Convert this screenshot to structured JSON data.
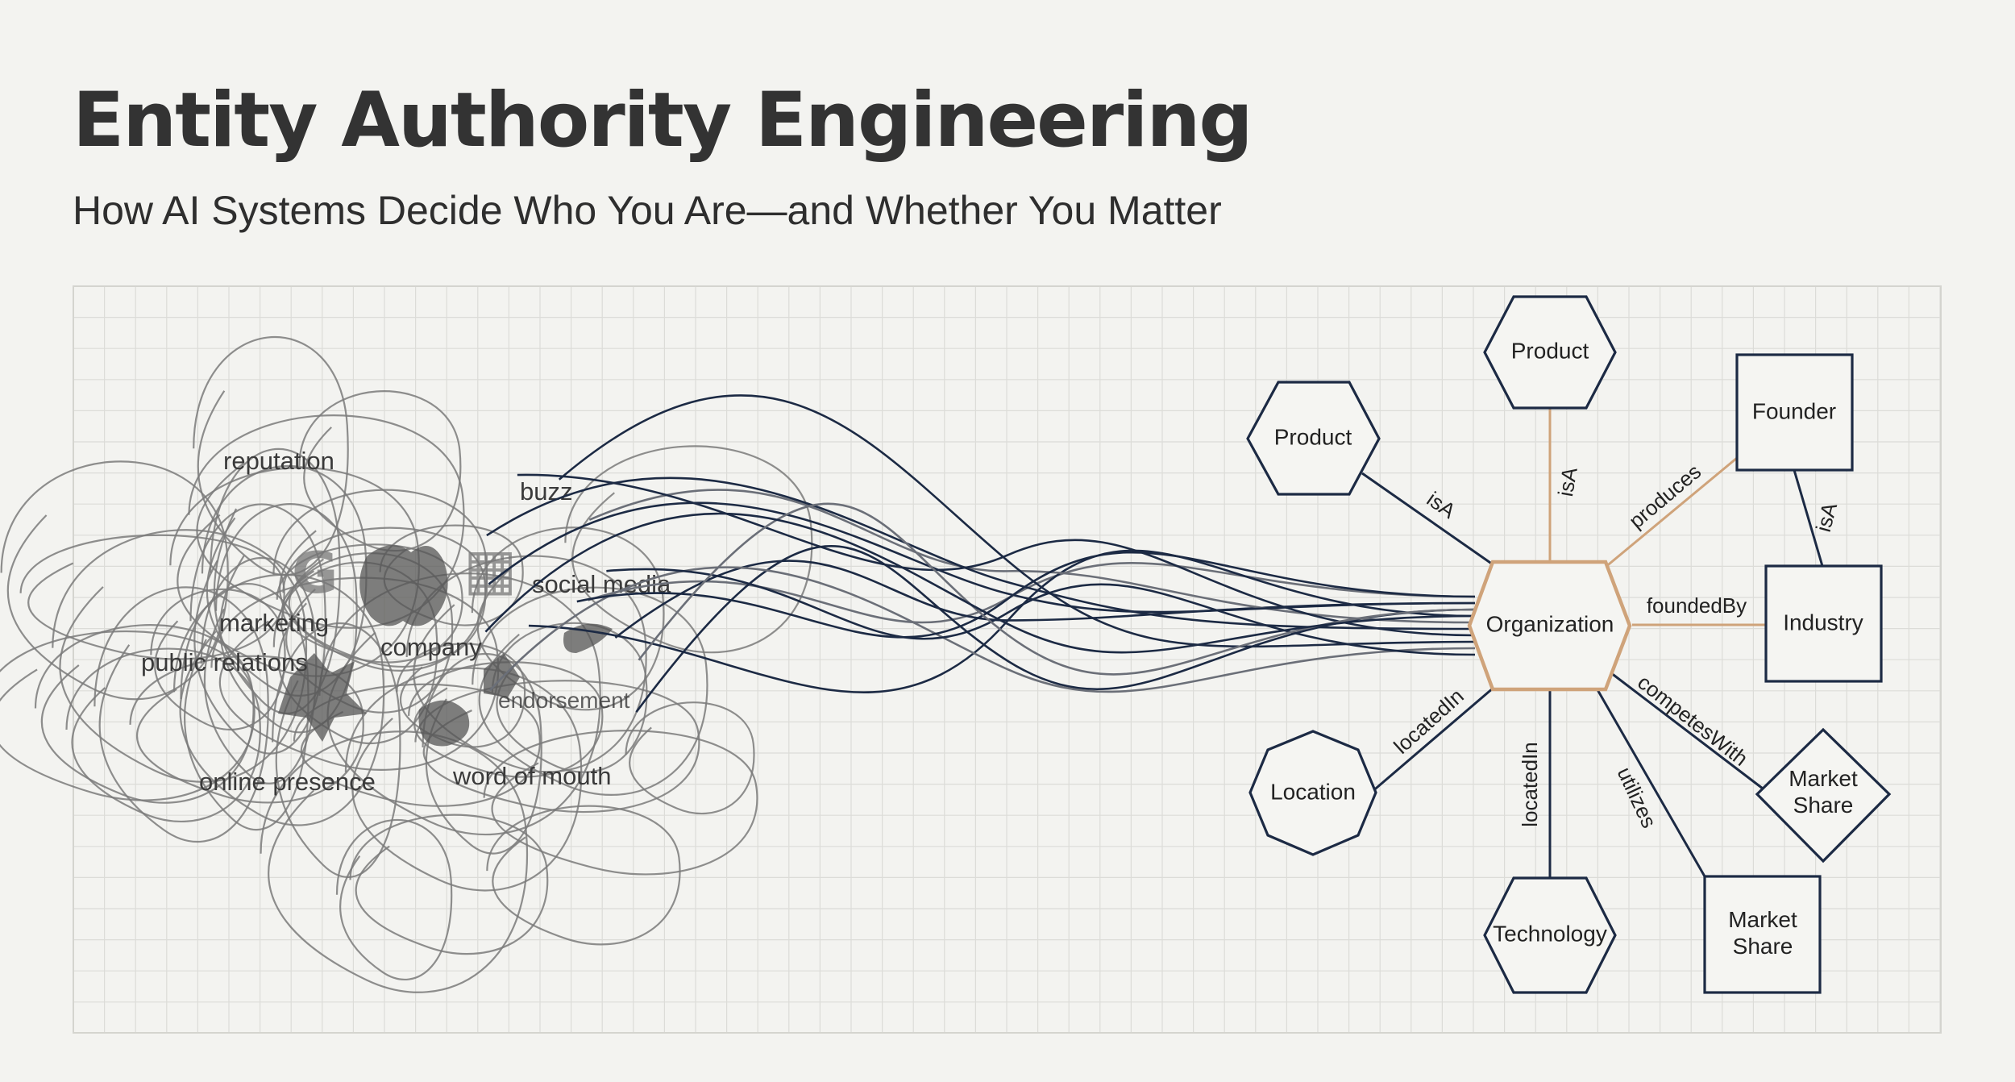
{
  "title": "Entity Authority Engineering",
  "subtitle": "How AI Systems Decide Who You Are—and Whether You Matter",
  "chaos_words": {
    "reputation": "reputation",
    "buzz": "buzz",
    "social_media": "social media",
    "marketing": "marketing",
    "company": "company",
    "public_relations": "public relations",
    "endorsement": "endorsement",
    "online_presence": "online presence",
    "word_of_mouth": "word of mouth"
  },
  "nodes": {
    "organization": "Organization",
    "product_top": "Product",
    "product_left": "Product",
    "founder": "Founder",
    "industry": "Industry",
    "location": "Location",
    "technology": "Technology",
    "market_share_diamond": "Market Share",
    "market_share_square": "Market Share"
  },
  "edges": {
    "isA_product_left": "isA",
    "isA_product_top": "isA",
    "produces": "produces",
    "isA_founder_industry": "isA",
    "foundedBy": "foundedBy",
    "competesWith": "competesWith",
    "locatedIn_location": "locatedIn",
    "locatedIn_technology": "locatedIn",
    "utilizes": "utilizes"
  },
  "colors": {
    "background": "#f3f3f0",
    "navy": "#1c2a44",
    "hub_accent": "#cfa37a",
    "grid": "#dcdcd8"
  }
}
